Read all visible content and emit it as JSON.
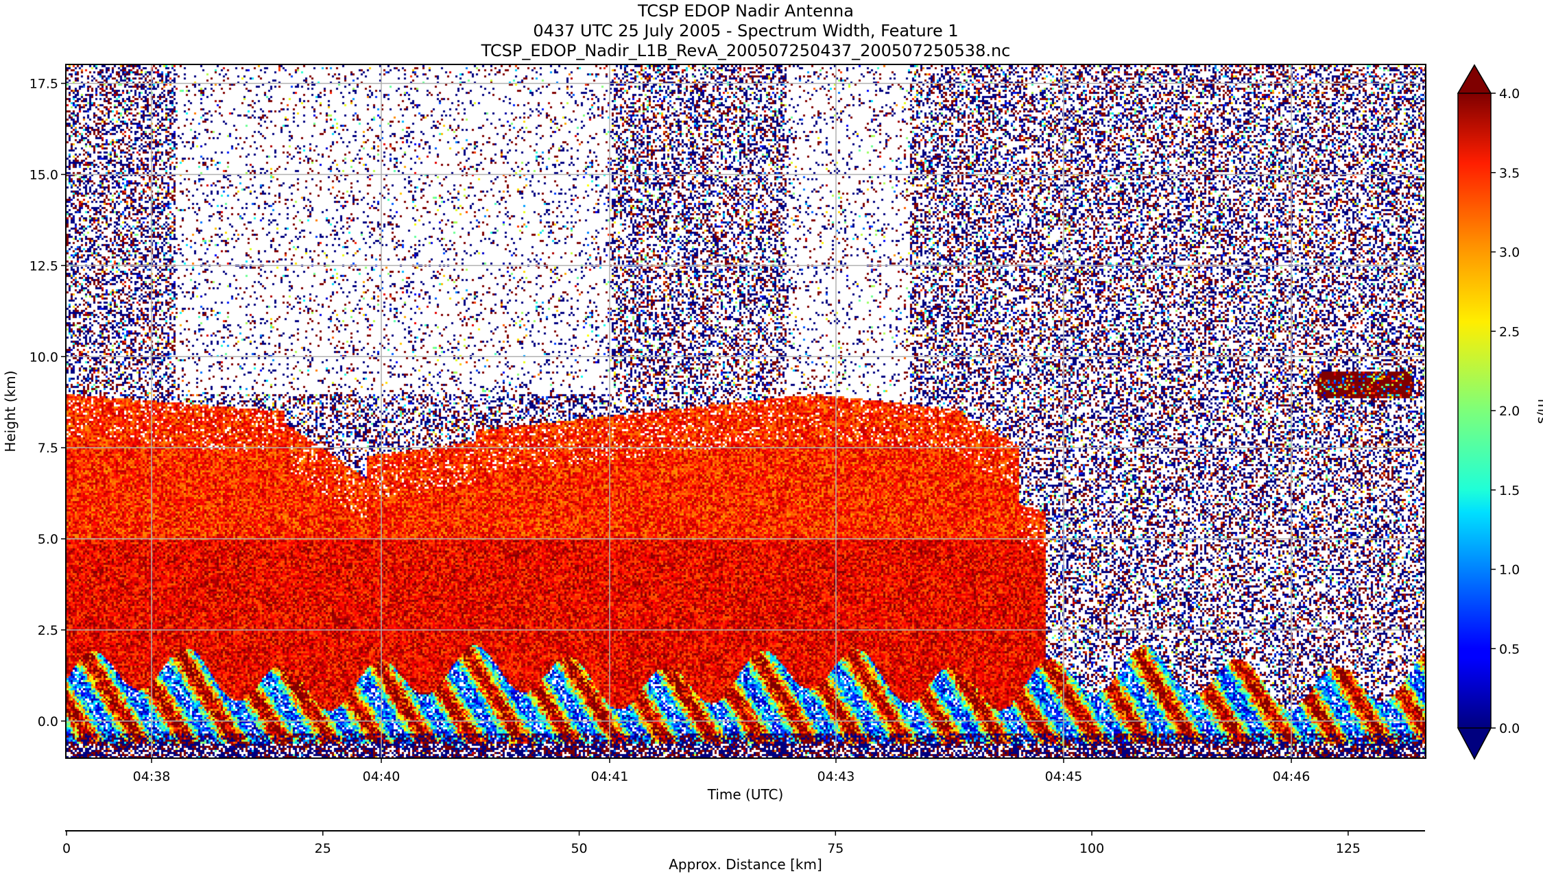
{
  "title": {
    "line1": "TCSP EDOP Nadir Antenna",
    "line2": "0437 UTC 25 July 2005 - Spectrum Width, Feature 1",
    "line3": "TCSP_EDOP_Nadir_L1B_RevA_200507250437_200507250538.nc"
  },
  "chart_data": {
    "type": "heatmap",
    "variable": "Spectrum Width",
    "xlabel": "Time (UTC)",
    "ylabel": "Height (km)",
    "x_ticks": [
      "04:38",
      "04:40",
      "04:41",
      "04:43",
      "04:45",
      "04:46"
    ],
    "y_ticks": [
      "0.0",
      "2.5",
      "5.0",
      "7.5",
      "10.0",
      "12.5",
      "15.0",
      "17.5"
    ],
    "y_tick_values": [
      0,
      2.5,
      5,
      7.5,
      10,
      12.5,
      15,
      17.5
    ],
    "ylim": [
      -1,
      18
    ],
    "grid": true,
    "colormap": "jet",
    "colorbar": {
      "label": "m/s",
      "range": [
        0,
        4
      ],
      "ticks": [
        "0.0",
        "0.5",
        "1.0",
        "1.5",
        "2.0",
        "2.5",
        "3.0",
        "3.5",
        "4.0"
      ],
      "extend": "both"
    },
    "secondary_axis": {
      "xlabel": "Approx. Distance [km]",
      "ticks": [
        "0",
        "25",
        "50",
        "75",
        "100",
        "125"
      ],
      "tick_values": [
        0,
        25,
        50,
        75,
        100,
        125
      ],
      "xlim": [
        0,
        132.5
      ]
    }
  }
}
